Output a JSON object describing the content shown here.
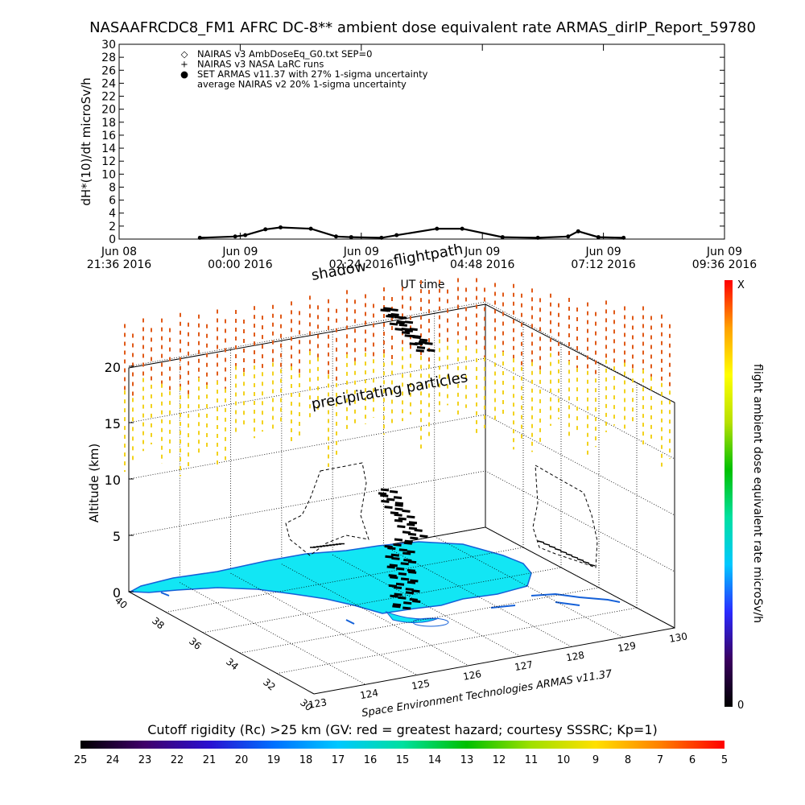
{
  "title": "NASAAFRCDC8_FM1 AFRC DC-8** ambient dose equivalent rate ARMAS_dirIP_Report_59780",
  "top_panel": {
    "ylabel": "dH*(10)/dt microSv/h",
    "xlabel": "UT time",
    "legend": [
      {
        "marker": "◇",
        "text": "NAIRAS v3 AmbDoseEq_G0.txt SEP=0"
      },
      {
        "marker": "+",
        "text": "NAIRAS v3 NASA LaRC runs"
      },
      {
        "marker": "●",
        "text": "SET ARMAS v11.37 with 27% 1-sigma uncertainty"
      },
      {
        "marker": "",
        "text": "average NAIRAS v2 20% 1-sigma uncertainty"
      }
    ]
  },
  "chart_data": [
    {
      "type": "line",
      "title": "NASAAFRCDC8_FM1 AFRC DC-8** ambient dose equivalent rate ARMAS_dirIP_Report_59780",
      "xlabel": "UT time",
      "ylabel": "dH*(10)/dt microSv/h",
      "ylim": [
        0,
        30
      ],
      "yticks": [
        0,
        2,
        4,
        6,
        8,
        10,
        12,
        14,
        16,
        18,
        20,
        22,
        24,
        26,
        28,
        30
      ],
      "xticks": [
        {
          "line1": "Jun 08",
          "line2": "21:36 2016"
        },
        {
          "line1": "Jun 09",
          "line2": "00:00 2016"
        },
        {
          "line1": "Jun 09",
          "line2": "02:24 2016"
        },
        {
          "line1": "Jun 09",
          "line2": "04:48 2016"
        },
        {
          "line1": "Jun 09",
          "line2": "07:12 2016"
        },
        {
          "line1": "Jun 09",
          "line2": "09:36 2016"
        }
      ],
      "x_hours_since_first_tick": [
        0,
        2.4,
        4.8,
        7.2,
        9.6,
        12
      ],
      "series": [
        {
          "name": "NAIRAS v3 AmbDoseEq_G0.txt SEP=0",
          "x": [
            1.6,
            2.3,
            2.5,
            2.9,
            3.2,
            3.8,
            4.3,
            4.6,
            5.2,
            5.5,
            6.3,
            6.8,
            7.6,
            8.3,
            8.9,
            9.1,
            9.5,
            10.0
          ],
          "y": [
            0.2,
            0.4,
            0.6,
            1.5,
            1.8,
            1.6,
            0.4,
            0.3,
            0.2,
            0.6,
            1.6,
            1.6,
            0.3,
            0.2,
            0.4,
            1.2,
            0.3,
            0.2
          ]
        }
      ]
    },
    {
      "type": "scatter",
      "title": "",
      "zlabel": "Altitude (km)",
      "zticks": [
        0,
        5,
        10,
        15,
        20
      ],
      "lat_ticks": [
        30,
        32,
        34,
        36,
        38,
        40
      ],
      "lon_ticks": [
        123,
        124,
        125,
        126,
        127,
        128,
        129,
        130
      ],
      "annotations": [
        "flightpath",
        "shadow",
        "precipitating particles"
      ],
      "credit": "Space Environment Technologies ARMAS v11.37",
      "colorbar": {
        "label": "flight ambient dose equivalent rate microSv/h",
        "top": "X",
        "bottom": "0",
        "colors": [
          "#000000",
          "#3a0060",
          "#2a2aff",
          "#00c8ff",
          "#00e0a0",
          "#00c000",
          "#b8e000",
          "#ffff00",
          "#ffa000",
          "#ff0000"
        ]
      },
      "colors": {
        "land": "#12e6f4",
        "particles_high": "#e05a18",
        "particles_low": "#f2d21c",
        "flight_path": "#000000"
      }
    }
  ],
  "rigidity_bar": {
    "title": "Cutoff rigidity (Rc) >25 km (GV: red = greatest hazard; courtesy SSSRC; Kp=1)",
    "ticks": [
      "25",
      "24",
      "23",
      "22",
      "21",
      "20",
      "19",
      "18",
      "17",
      "16",
      "15",
      "14",
      "13",
      "12",
      "11",
      "10",
      "9",
      "8",
      "7",
      "6",
      "5"
    ],
    "colors": [
      "#000000",
      "#40006a",
      "#2a10d0",
      "#0070ff",
      "#00c8ff",
      "#00e0a0",
      "#00c000",
      "#a0e000",
      "#ffe000",
      "#ff8000",
      "#ff0000"
    ]
  }
}
